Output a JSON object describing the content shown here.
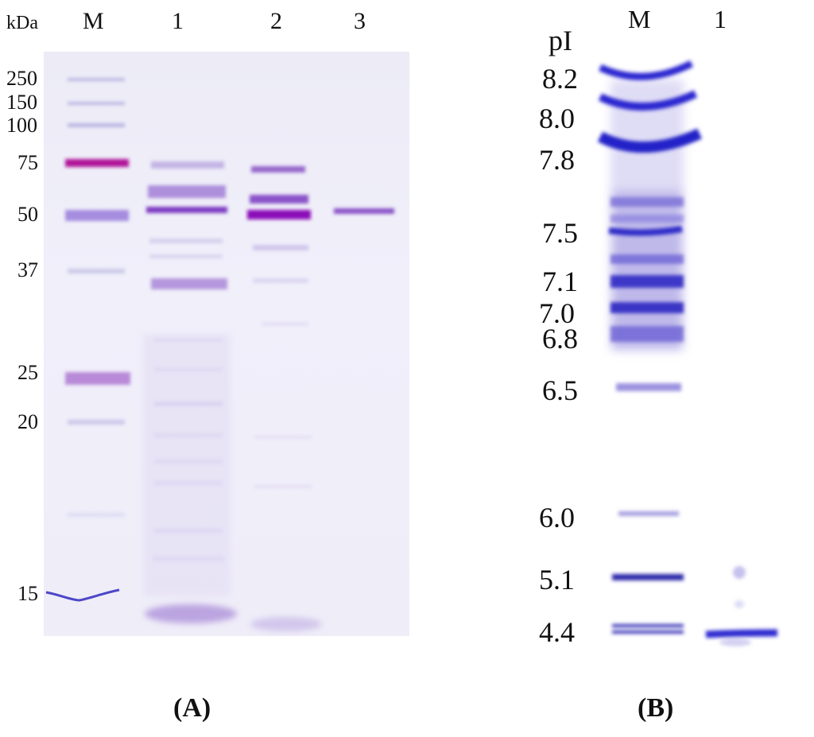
{
  "panel_a": {
    "label": "(A)",
    "letter": "A",
    "unit": "kDa",
    "lanes": [
      "M",
      "1",
      "2",
      "3"
    ],
    "markers": [
      "250",
      "150",
      "100",
      "75",
      "50",
      "37",
      "25",
      "20",
      "15"
    ]
  },
  "panel_b": {
    "label": "(B)",
    "letter": "B",
    "unit": "pI",
    "lanes": [
      "M",
      "1"
    ],
    "markers": [
      "8.2",
      "8.0",
      "7.8",
      "7.5",
      "7.1",
      "7.0",
      "6.8",
      "6.5",
      "6.0",
      "5.1",
      "4.4"
    ]
  },
  "colors": {
    "band_purple": "#7b3fc0",
    "band_blue": "#2a2ad0",
    "band_magenta": "#b2128e",
    "gel_background": "#eeedf8"
  }
}
